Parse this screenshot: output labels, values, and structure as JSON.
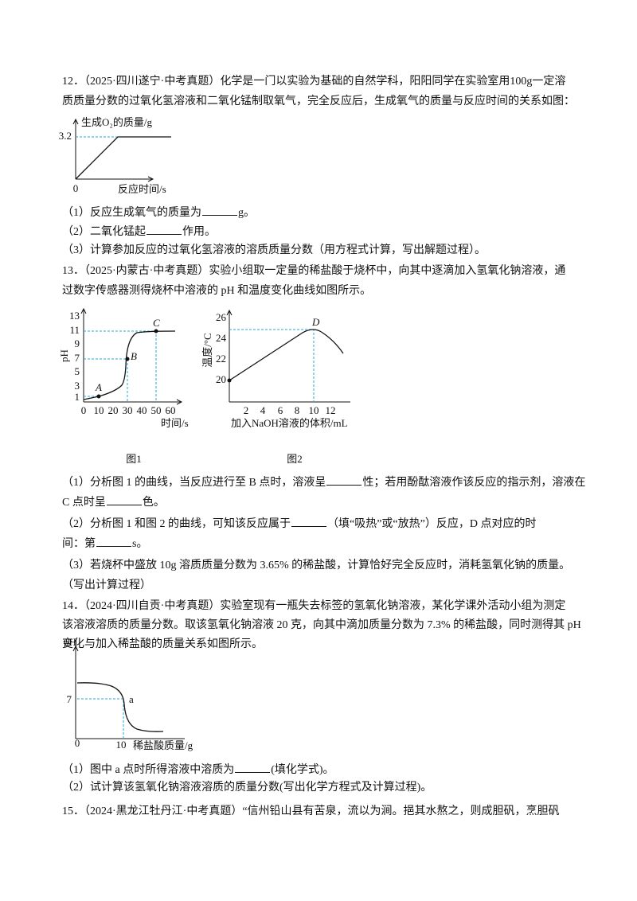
{
  "lines": [
    [
      "12．（2025·四川遂宁·中考真题）化学是一门以实验为基础的自然学科，阳阳同学在实验室用100g一定溶"
    ],
    [
      "质质量分数的过氧化氢溶液和二氧化锰制取氧气，完全反应后，生成氧气的质量与反应时间的关系如图："
    ],
    [
      "（1）反应生成氧气的质量为",
      "g。"
    ],
    [
      "（2）二氧化锰起",
      "作用。"
    ],
    [
      "（3）计算参加反应的过氧化氢溶液的溶质质量分数（用方程式计算，写出解题过程）。"
    ],
    [
      "13．（2025·内蒙古·中考真题）实验小组取一定量的稀盐酸于烧杯中，向其中逐滴加入氢氧化钠溶液，通"
    ],
    [
      "过数字传感器测得烧杯中溶液的 pH 和温度变化曲线如图所示。"
    ],
    [
      "（1）分析图 1 的曲线，当反应进行至 B 点时，溶液呈",
      "性；若用酚酞溶液作该反应的指示剂，溶液在"
    ],
    [
      "C 点时呈",
      "色。"
    ],
    [
      "（2）分析图 1 和图 2 的曲线，可知该反应属于",
      "（填“吸热”或“放热”）反应，D 点对应的时"
    ],
    [
      "间：第",
      "s。"
    ],
    [
      "（3）若烧杯中盛放 10g 溶质质量分数为 3.65% 的稀盐酸，计算恰好完全反应时，消耗氢氧化钠的质量。"
    ],
    [
      "（写出计算过程）"
    ],
    [
      "14．（2024·四川自贡·中考真题）实验室现有一瓶失去标签的氢氧化钠溶液，某化学课外活动小组为测定"
    ],
    [
      "该溶液溶质的质量分数。取该氢氧化钠溶液 20 克，向其中滴加质量分数为 7.3% 的稀盐酸，同时测得其 pH"
    ],
    [
      "变化与加入稀盐酸的质量关系如图所示。"
    ],
    [
      "（1）图中 a 点时所得溶液中溶质为",
      "(填化学式)。"
    ],
    [
      "（2）试计算该氢氧化钠溶液溶质的质量分数(写出化学方程式及计算过程)。"
    ],
    [
      "15．（2024·黑龙江牡丹江·中考真题）“信州铅山县有苦泉，流以为涧。挹其水熬之，则成胆矾，烹胆矾"
    ]
  ],
  "figures": [
    {
      "y_label": "生成O₂的质量/g",
      "y_ticks": [
        "3.2"
      ],
      "x_ticks": [
        "0"
      ],
      "x_label": "反应时间/s"
    },
    {
      "y_label": "pH",
      "y_ticks": [
        "1",
        "3",
        "5",
        "7",
        "9",
        "11",
        "13"
      ],
      "x_ticks": [
        "0",
        "10",
        "20",
        "30",
        "40",
        "50",
        "60"
      ],
      "x_label": "时间/s",
      "points": [
        "A",
        "B",
        "C"
      ],
      "caption": "图1"
    },
    {
      "y_label": "温度/°C",
      "y_ticks": [
        "20",
        "22",
        "24",
        "26"
      ],
      "x_ticks": [
        "2",
        "4",
        "6",
        "8",
        "10",
        "12"
      ],
      "x_label": "加入NaOH溶液的体积/mL",
      "points": [
        "D"
      ],
      "caption": "图2"
    },
    {
      "y_label": "pH",
      "y_ticks": [
        "7"
      ],
      "x_ticks": [
        "0",
        "10"
      ],
      "x_label": "稀盐酸质量/g",
      "points": [
        "a"
      ]
    }
  ]
}
